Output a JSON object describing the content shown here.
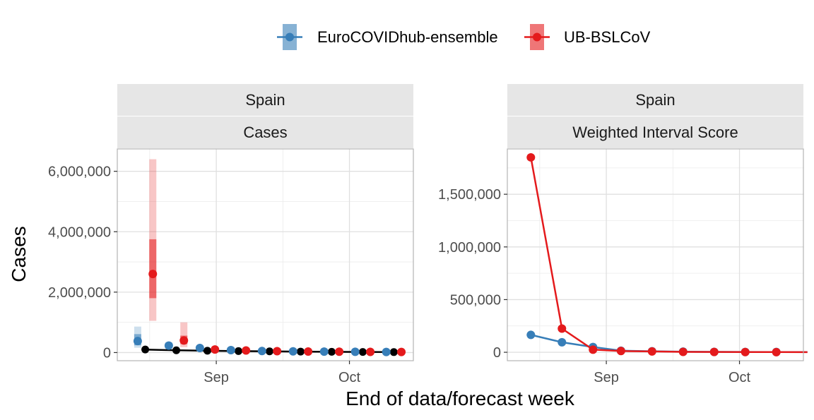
{
  "chart_data": {
    "type": "line",
    "xlabel": "End of data/forecast week",
    "ylabel": "Cases",
    "x_tick_labels": [
      "Sep",
      "Oct"
    ],
    "legend": {
      "position": "top",
      "entries": [
        {
          "name": "EuroCOVIDhub-ensemble",
          "color": "#377eb8"
        },
        {
          "name": "UB-BSLCoV",
          "color": "#e41a1c"
        }
      ]
    },
    "panels": [
      {
        "strips": [
          "Spain",
          "Cases"
        ],
        "ylim": [
          -270000,
          6740000
        ],
        "y_ticks": [
          {
            "value": 0,
            "label": "0"
          },
          {
            "value": 2000000,
            "label": "2,000,000"
          },
          {
            "value": 4000000,
            "label": "4,000,000"
          },
          {
            "value": 6000000,
            "label": "6,000,000"
          }
        ],
        "x_ticks": [
          {
            "x": 5,
            "label": "Sep"
          },
          {
            "x": 35,
            "label": "Oct"
          }
        ],
        "xlim": [
          -17.3,
          49.4
        ],
        "observed": {
          "color": "#000000",
          "points": [
            {
              "x": -11,
              "y": 100000
            },
            {
              "x": -4,
              "y": 75000
            },
            {
              "x": 3,
              "y": 60000
            },
            {
              "x": 10,
              "y": 48000
            },
            {
              "x": 17,
              "y": 40000
            },
            {
              "x": 24,
              "y": 32000
            },
            {
              "x": 31,
              "y": 25000
            },
            {
              "x": 38,
              "y": 20000
            },
            {
              "x": 45,
              "y": 15000
            }
          ]
        },
        "forecasts": [
          {
            "model": "EuroCOVIDhub-ensemble",
            "color": "#377eb8",
            "points": [
              {
                "x": -12.7,
                "y": 380000,
                "lo50": 240000,
                "hi50": 610000,
                "lo90": 160000,
                "hi90": 860000
              },
              {
                "x": -5.7,
                "y": 230000,
                "lo50": 170000,
                "hi50": 290000,
                "lo90": 130000,
                "hi90": 340000
              },
              {
                "x": 1.3,
                "y": 150000,
                "lo50": 120000,
                "hi50": 180000,
                "lo90": 90000,
                "hi90": 210000
              },
              {
                "x": 8.3,
                "y": 80000,
                "lo50": 60000,
                "hi50": 100000,
                "lo90": 40000,
                "hi90": 120000
              },
              {
                "x": 15.3,
                "y": 50000,
                "lo50": 35000,
                "hi50": 65000,
                "lo90": 20000,
                "hi90": 80000
              },
              {
                "x": 22.3,
                "y": 40000,
                "lo50": 28000,
                "hi50": 52000,
                "lo90": 15000,
                "hi90": 65000
              },
              {
                "x": 29.3,
                "y": 30000,
                "lo50": 20000,
                "hi50": 40000,
                "lo90": 10000,
                "hi90": 50000
              },
              {
                "x": 36.3,
                "y": 25000,
                "lo50": 18000,
                "hi50": 32000,
                "lo90": 10000,
                "hi90": 42000
              },
              {
                "x": 43.3,
                "y": 20000,
                "lo50": 14000,
                "hi50": 27000,
                "lo90": 8000,
                "hi90": 35000
              }
            ]
          },
          {
            "model": "UB-BSLCoV",
            "color": "#e41a1c",
            "points": [
              {
                "x": -9.3,
                "y": 2600000,
                "lo50": 1800000,
                "hi50": 3750000,
                "lo90": 1050000,
                "hi90": 6400000
              },
              {
                "x": -2.3,
                "y": 400000,
                "lo50": 280000,
                "hi50": 560000,
                "lo90": 180000,
                "hi90": 1000000
              },
              {
                "x": 4.7,
                "y": 100000,
                "lo50": 80000,
                "hi50": 130000,
                "lo90": 60000,
                "hi90": 170000
              },
              {
                "x": 11.7,
                "y": 70000,
                "lo50": 55000,
                "hi50": 90000,
                "lo90": 40000,
                "hi90": 115000
              },
              {
                "x": 18.7,
                "y": 45000,
                "lo50": 35000,
                "hi50": 60000,
                "lo90": 25000,
                "hi90": 80000
              },
              {
                "x": 25.7,
                "y": 35000,
                "lo50": 26000,
                "hi50": 46000,
                "lo90": 18000,
                "hi90": 62000
              },
              {
                "x": 32.7,
                "y": 28000,
                "lo50": 20000,
                "hi50": 37000,
                "lo90": 14000,
                "hi90": 50000
              },
              {
                "x": 39.7,
                "y": 22000,
                "lo50": 16000,
                "hi50": 30000,
                "lo90": 11000,
                "hi90": 42000
              },
              {
                "x": 46.7,
                "y": 18000,
                "lo50": 13000,
                "hi50": 25000,
                "lo90": 9000,
                "hi90": 35000
              }
            ]
          }
        ]
      },
      {
        "strips": [
          "Spain",
          "Weighted Interval Score"
        ],
        "ylim": [
          -80000,
          1930000
        ],
        "y_ticks": [
          {
            "value": 0,
            "label": "0"
          },
          {
            "value": 500000,
            "label": "500,000"
          },
          {
            "value": 1000000,
            "label": "1,000,000"
          },
          {
            "value": 1500000,
            "label": "1,500,000"
          }
        ],
        "x_ticks": [
          {
            "x": 5,
            "label": "Sep"
          },
          {
            "x": 35,
            "label": "Oct"
          }
        ],
        "xlim": [
          -17.3,
          49.4
        ],
        "series": [
          {
            "name": "EuroCOVIDhub-ensemble",
            "color": "#377eb8",
            "points": [
              {
                "x": -12,
                "y": 165000
              },
              {
                "x": -5,
                "y": 95000
              },
              {
                "x": 2,
                "y": 50000
              },
              {
                "x": 8.3,
                "y": 15000
              },
              {
                "x": 15.3,
                "y": 10000
              },
              {
                "x": 22.3,
                "y": 6000
              },
              {
                "x": 29.3,
                "y": 4000
              },
              {
                "x": 36.3,
                "y": 3000
              },
              {
                "x": 43.3,
                "y": 2500
              },
              {
                "x": 50.3,
                "y": 2000
              }
            ]
          },
          {
            "name": "UB-BSLCoV",
            "color": "#e41a1c",
            "points": [
              {
                "x": -12,
                "y": 1850000
              },
              {
                "x": -5,
                "y": 225000
              },
              {
                "x": 2,
                "y": 25000
              },
              {
                "x": 8.3,
                "y": 12000
              },
              {
                "x": 15.3,
                "y": 8000
              },
              {
                "x": 22.3,
                "y": 4000
              },
              {
                "x": 29.3,
                "y": 3000
              },
              {
                "x": 36.3,
                "y": 2000
              },
              {
                "x": 43.3,
                "y": 1500
              },
              {
                "x": 50.3,
                "y": 1000
              }
            ]
          }
        ]
      }
    ]
  }
}
